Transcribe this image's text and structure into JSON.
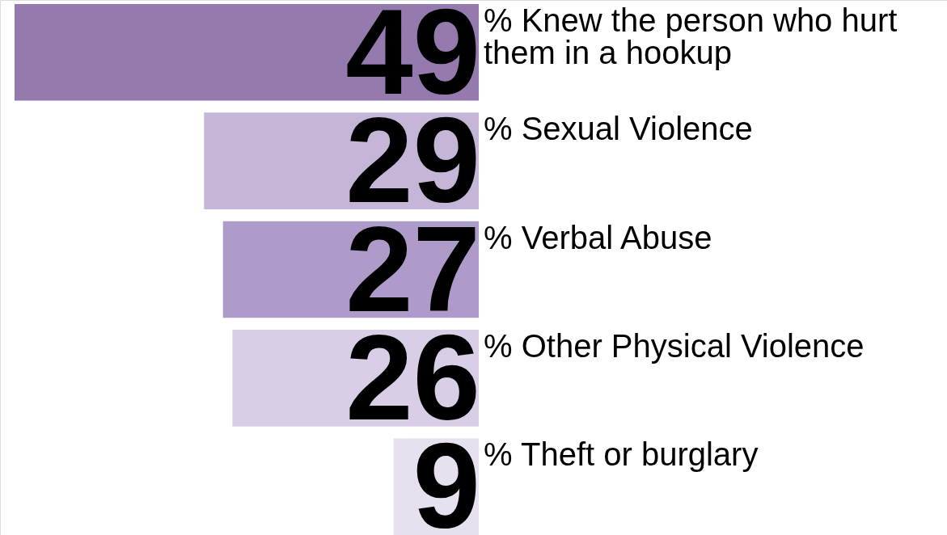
{
  "chart_data": {
    "type": "bar",
    "orientation": "horizontal",
    "data_labels": true,
    "categories": [
      "% Knew the person who hurt them in a hookup",
      "% Sexual Violence",
      "% Verbal Abuse",
      "% Other Physical Violence",
      "% Theft or burglary"
    ],
    "values": [
      49,
      29,
      27,
      26,
      9
    ],
    "colors": [
      "#957aae",
      "#c5b6d8",
      "#ae9bc9",
      "#d8cfe6",
      "#e6e0ef"
    ]
  }
}
